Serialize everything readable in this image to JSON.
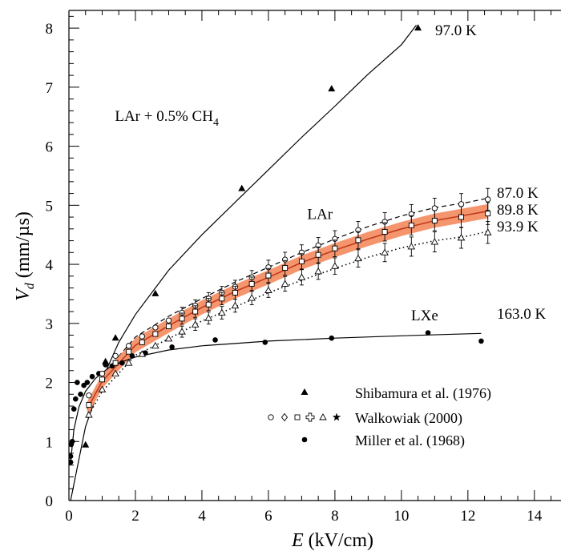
{
  "chart_data": {
    "type": "scatter",
    "xlabel": {
      "var": "E",
      "unit": "(kV/cm)"
    },
    "ylabel": {
      "var": "V",
      "sub": "d",
      "unit": "(mm/µs)"
    },
    "xlim": [
      0,
      14.8
    ],
    "ylim": [
      0,
      8.3
    ],
    "x_ticks": [
      "0",
      "2",
      "4",
      "6",
      "8",
      "10",
      "12",
      "14"
    ],
    "y_ticks": [
      "0",
      "1",
      "2",
      "3",
      "4",
      "5",
      "6",
      "7",
      "8"
    ],
    "grid": false,
    "series": [
      {
        "name": "Shibamura et al. (1976)",
        "marker": "filled-triangle",
        "points": [
          [
            0.5,
            0.94
          ],
          [
            1.1,
            2.35
          ],
          [
            1.4,
            2.75
          ],
          [
            2.6,
            3.5
          ],
          [
            5.2,
            5.28
          ],
          [
            7.9,
            6.97
          ],
          [
            10.5,
            8.0
          ]
        ]
      },
      {
        "name": "Miller et al. (1968)",
        "marker": "filled-circle",
        "points": [
          [
            0.05,
            0.65
          ],
          [
            0.05,
            0.75
          ],
          [
            0.07,
            0.95
          ],
          [
            0.1,
            1.0
          ],
          [
            0.15,
            1.55
          ],
          [
            0.2,
            1.72
          ],
          [
            0.25,
            2.0
          ],
          [
            0.35,
            1.8
          ],
          [
            0.45,
            1.95
          ],
          [
            0.55,
            2.0
          ],
          [
            0.7,
            2.1
          ],
          [
            0.9,
            2.15
          ],
          [
            1.1,
            2.3
          ],
          [
            1.3,
            2.28
          ],
          [
            1.6,
            2.33
          ],
          [
            1.9,
            2.45
          ],
          [
            2.3,
            2.5
          ],
          [
            3.1,
            2.6
          ],
          [
            4.4,
            2.72
          ],
          [
            5.9,
            2.68
          ],
          [
            7.9,
            2.75
          ],
          [
            10.8,
            2.84
          ],
          [
            12.4,
            2.7
          ]
        ]
      },
      {
        "name": "Walkowiak (2000)",
        "marker_labels": [
          "open-circle",
          "open-diamond",
          "open-square",
          "open-cross",
          "open-triangle",
          "star"
        ],
        "subseries": [
          {
            "temperature": "87.0 K",
            "marker": "open-circle",
            "points": [
              [
                0.6,
                1.78
              ],
              [
                1.0,
                2.15
              ],
              [
                1.4,
                2.45
              ],
              [
                1.8,
                2.62
              ],
              [
                2.2,
                2.78
              ],
              [
                2.6,
                2.93
              ],
              [
                3.0,
                3.05
              ],
              [
                3.4,
                3.18
              ],
              [
                3.8,
                3.3
              ],
              [
                4.2,
                3.42
              ],
              [
                4.6,
                3.52
              ],
              [
                5.0,
                3.62
              ],
              [
                5.5,
                3.78
              ],
              [
                6.0,
                3.95
              ],
              [
                6.5,
                4.08
              ],
              [
                7.0,
                4.2
              ],
              [
                7.5,
                4.32
              ],
              [
                8.0,
                4.43
              ],
              [
                8.7,
                4.58
              ],
              [
                9.5,
                4.72
              ],
              [
                10.3,
                4.85
              ],
              [
                11.0,
                4.95
              ],
              [
                11.8,
                5.02
              ],
              [
                12.6,
                5.1
              ]
            ]
          },
          {
            "temperature": "89.8 K",
            "marker": "open-square",
            "points": [
              [
                0.6,
                1.62
              ],
              [
                1.0,
                2.05
              ],
              [
                1.4,
                2.33
              ],
              [
                1.8,
                2.52
              ],
              [
                2.2,
                2.68
              ],
              [
                2.6,
                2.82
              ],
              [
                3.0,
                2.95
              ],
              [
                3.4,
                3.08
              ],
              [
                3.8,
                3.2
              ],
              [
                4.2,
                3.32
              ],
              [
                4.6,
                3.42
              ],
              [
                5.0,
                3.52
              ],
              [
                5.5,
                3.67
              ],
              [
                6.0,
                3.81
              ],
              [
                6.5,
                3.94
              ],
              [
                7.0,
                4.05
              ],
              [
                7.5,
                4.16
              ],
              [
                8.0,
                4.27
              ],
              [
                8.7,
                4.41
              ],
              [
                9.5,
                4.55
              ],
              [
                10.3,
                4.66
              ],
              [
                11.0,
                4.74
              ],
              [
                11.8,
                4.8
              ],
              [
                12.6,
                4.86
              ]
            ]
          },
          {
            "temperature": "93.9 K",
            "marker": "open-triangle",
            "points": [
              [
                0.6,
                1.45
              ],
              [
                1.0,
                1.88
              ],
              [
                1.4,
                2.15
              ],
              [
                1.8,
                2.33
              ],
              [
                2.2,
                2.48
              ],
              [
                2.6,
                2.62
              ],
              [
                3.0,
                2.74
              ],
              [
                3.4,
                2.86
              ],
              [
                3.8,
                2.98
              ],
              [
                4.2,
                3.09
              ],
              [
                4.6,
                3.18
              ],
              [
                5.0,
                3.3
              ],
              [
                5.5,
                3.43
              ],
              [
                6.0,
                3.56
              ],
              [
                6.5,
                3.67
              ],
              [
                7.0,
                3.78
              ],
              [
                7.5,
                3.88
              ],
              [
                8.0,
                3.97
              ],
              [
                8.7,
                4.1
              ],
              [
                9.5,
                4.2
              ],
              [
                10.3,
                4.3
              ],
              [
                11.0,
                4.38
              ],
              [
                11.8,
                4.45
              ],
              [
                12.6,
                4.54
              ]
            ]
          }
        ]
      }
    ],
    "curves": [
      {
        "label": "LAr + 0.5% CH4",
        "style": "solid-black",
        "points": [
          [
            0.05,
            0.0
          ],
          [
            0.5,
            1.25
          ],
          [
            1.0,
            2.05
          ],
          [
            1.5,
            2.68
          ],
          [
            2.0,
            3.15
          ],
          [
            3.0,
            3.9
          ],
          [
            4.0,
            4.5
          ],
          [
            5.0,
            5.05
          ],
          [
            6.0,
            5.6
          ],
          [
            7.0,
            6.15
          ],
          [
            8.0,
            6.68
          ],
          [
            9.0,
            7.22
          ],
          [
            10.0,
            7.72
          ],
          [
            10.45,
            8.05
          ]
        ]
      },
      {
        "label": "87.0 K",
        "style": "dashed-black",
        "points": [
          [
            0.55,
            1.65
          ],
          [
            1.0,
            2.12
          ],
          [
            2.0,
            2.77
          ],
          [
            3.0,
            3.12
          ],
          [
            4.0,
            3.42
          ],
          [
            5.0,
            3.7
          ],
          [
            6.0,
            3.95
          ],
          [
            7.0,
            4.2
          ],
          [
            8.0,
            4.43
          ],
          [
            9.0,
            4.64
          ],
          [
            10.0,
            4.82
          ],
          [
            11.0,
            4.96
          ],
          [
            12.0,
            5.05
          ],
          [
            12.6,
            5.12
          ]
        ]
      },
      {
        "label": "89.8 K",
        "style": "solid-red-band",
        "band": 0.12,
        "points": [
          [
            0.55,
            1.55
          ],
          [
            1.0,
            2.02
          ],
          [
            2.0,
            2.63
          ],
          [
            3.0,
            2.96
          ],
          [
            4.0,
            3.27
          ],
          [
            5.0,
            3.54
          ],
          [
            6.0,
            3.78
          ],
          [
            7.0,
            4.03
          ],
          [
            8.0,
            4.24
          ],
          [
            9.0,
            4.43
          ],
          [
            10.0,
            4.6
          ],
          [
            11.0,
            4.74
          ],
          [
            12.0,
            4.84
          ],
          [
            12.6,
            4.9
          ]
        ]
      },
      {
        "label": "93.9 K",
        "style": "dotted-black",
        "points": [
          [
            0.55,
            1.4
          ],
          [
            1.0,
            1.85
          ],
          [
            2.0,
            2.46
          ],
          [
            3.0,
            2.74
          ],
          [
            4.0,
            3.04
          ],
          [
            5.0,
            3.28
          ],
          [
            6.0,
            3.52
          ],
          [
            7.0,
            3.73
          ],
          [
            8.0,
            3.93
          ],
          [
            9.0,
            4.12
          ],
          [
            10.0,
            4.28
          ],
          [
            11.0,
            4.4
          ],
          [
            12.0,
            4.48
          ],
          [
            12.6,
            4.56
          ]
        ]
      },
      {
        "label": "163.0 K",
        "style": "solid-black",
        "points": [
          [
            0.05,
            0.65
          ],
          [
            0.15,
            1.2
          ],
          [
            0.3,
            1.58
          ],
          [
            0.5,
            1.85
          ],
          [
            0.8,
            2.07
          ],
          [
            1.2,
            2.25
          ],
          [
            1.6,
            2.35
          ],
          [
            2.0,
            2.43
          ],
          [
            3.0,
            2.55
          ],
          [
            4.0,
            2.62
          ],
          [
            5.0,
            2.66
          ],
          [
            6.0,
            2.7
          ],
          [
            8.0,
            2.75
          ],
          [
            10.0,
            2.79
          ],
          [
            12.4,
            2.83
          ]
        ]
      }
    ],
    "annotations": {
      "lar_ch4": "LAr + 0.5% CH",
      "lar_ch4_sub": "4",
      "lar": "LAr",
      "lxe": "LXe",
      "t97": "97.0 K",
      "t87": "87.0 K",
      "t898": "89.8 K",
      "t939": "93.9 K",
      "t163": "163.0 K"
    },
    "legend": {
      "placement": "bottom-right",
      "entries": [
        "Shibamura et al. (1976)",
        "Walkowiak (2000)",
        "Miller et al. (1968)"
      ]
    },
    "colors": {
      "band": "#f4956e",
      "band_line": "#c0391b",
      "ink": "#000000"
    }
  }
}
